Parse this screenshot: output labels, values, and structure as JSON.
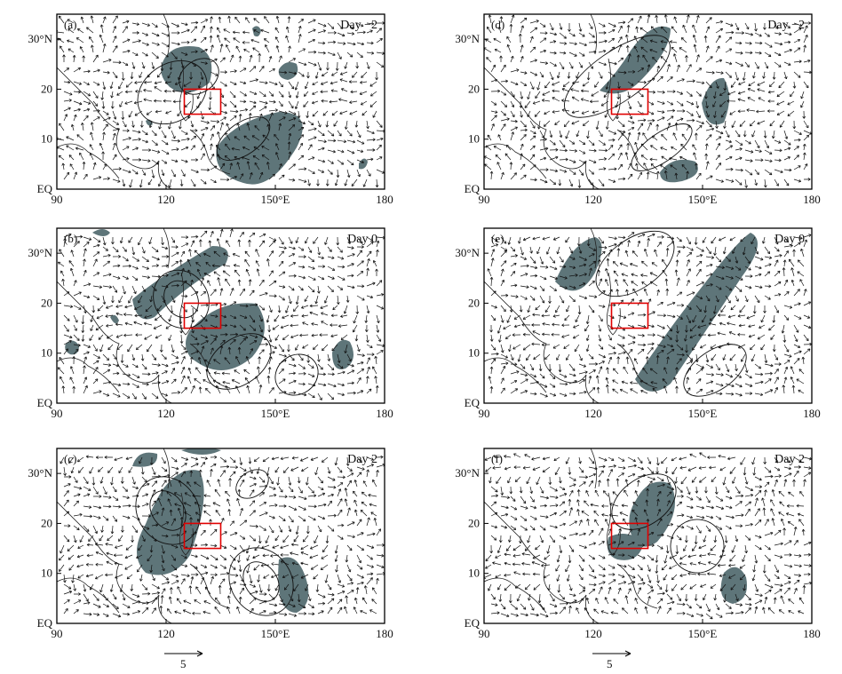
{
  "colors": {
    "shading": "#5e7579",
    "region_box": "#e00000"
  },
  "axes": {
    "x_ticks": [
      "90",
      "120",
      "150°E",
      "180"
    ],
    "y_ticks": [
      "EQ",
      "10",
      "20",
      "30°N"
    ],
    "x_range_deg": [
      90,
      180
    ],
    "y_range_deg": [
      0,
      35
    ]
  },
  "region_box_deg": {
    "lon": [
      125,
      135
    ],
    "lat": [
      15,
      20
    ]
  },
  "panels": [
    {
      "label": "(a)",
      "day": "Day −2"
    },
    {
      "label": "(d)",
      "day": "Day −2"
    },
    {
      "label": "(b)",
      "day": "Day 0"
    },
    {
      "label": "(e)",
      "day": "Day 0"
    },
    {
      "label": "(c)",
      "day": "Day 2"
    },
    {
      "label": "(f)",
      "day": "Day 2"
    }
  ],
  "reference_vector": {
    "label": "5"
  }
}
